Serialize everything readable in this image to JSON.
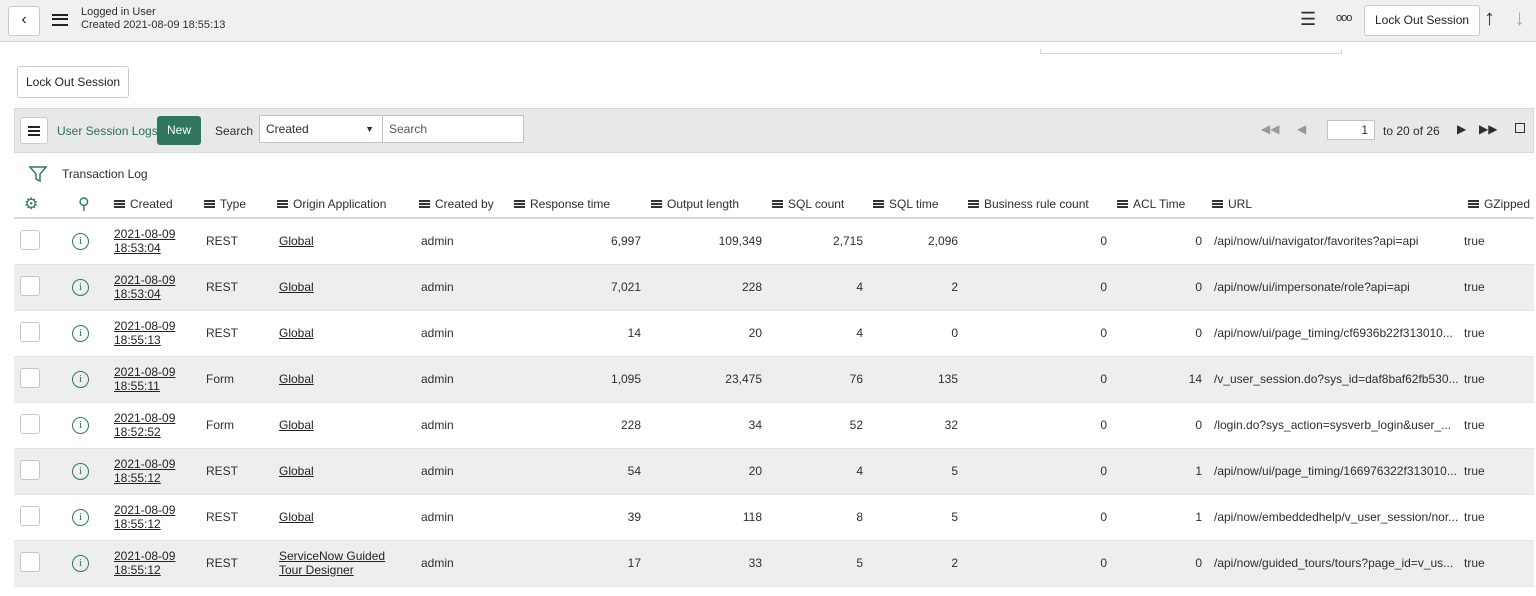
{
  "header": {
    "title": "Logged in User",
    "subtitle": "Created 2021-08-09 18:55:13",
    "button": "Lock Out Session"
  },
  "form": {
    "button": "Lock Out Session"
  },
  "list": {
    "title": "User Session Logs",
    "new": "New",
    "search_label": "Search",
    "search_field": "Created",
    "search_placeholder": "Search",
    "page_start": "1",
    "page_range": "to 20 of 26",
    "related_title": "Transaction Log"
  },
  "table": {
    "columns": [
      "Created",
      "Type",
      "Origin Application",
      "Created by",
      "Response time",
      "Output length",
      "SQL count",
      "SQL time",
      "Business rule count",
      "ACL Time",
      "URL",
      "GZipped"
    ],
    "rows": [
      [
        "2021-08-09 18:53:04",
        "REST",
        "Global",
        "admin",
        "6,997",
        "109,349",
        "2,715",
        "2,096",
        "0",
        "0",
        "/api/now/ui/navigator/favorites?api=api",
        "true"
      ],
      [
        "2021-08-09 18:53:04",
        "REST",
        "Global",
        "admin",
        "7,021",
        "228",
        "4",
        "2",
        "0",
        "0",
        "/api/now/ui/impersonate/role?api=api",
        "true"
      ],
      [
        "2021-08-09 18:55:13",
        "REST",
        "Global",
        "admin",
        "14",
        "20",
        "4",
        "0",
        "0",
        "0",
        "/api/now/ui/page_timing/cf6936b22f313010...",
        "true"
      ],
      [
        "2021-08-09 18:55:11",
        "Form",
        "Global",
        "admin",
        "1,095",
        "23,475",
        "76",
        "135",
        "0",
        "14",
        "/v_user_session.do?sys_id=daf8baf62fb530...",
        "true"
      ],
      [
        "2021-08-09 18:52:52",
        "Form",
        "Global",
        "admin",
        "228",
        "34",
        "52",
        "32",
        "0",
        "0",
        "/login.do?sys_action=sysverb_login&user_...",
        "true"
      ],
      [
        "2021-08-09 18:55:12",
        "REST",
        "Global",
        "admin",
        "54",
        "20",
        "4",
        "5",
        "0",
        "1",
        "/api/now/ui/page_timing/166976322f313010...",
        "true"
      ],
      [
        "2021-08-09 18:55:12",
        "REST",
        "Global",
        "admin",
        "39",
        "118",
        "8",
        "5",
        "0",
        "1",
        "/api/now/embeddedhelp/v_user_session/nor...",
        "true"
      ],
      [
        "2021-08-09 18:55:12",
        "REST",
        "ServiceNow Guided Tour Designer",
        "admin",
        "17",
        "33",
        "5",
        "2",
        "0",
        "0",
        "/api/now/guided_tours/tours?page_id=v_us...",
        "true"
      ]
    ]
  }
}
